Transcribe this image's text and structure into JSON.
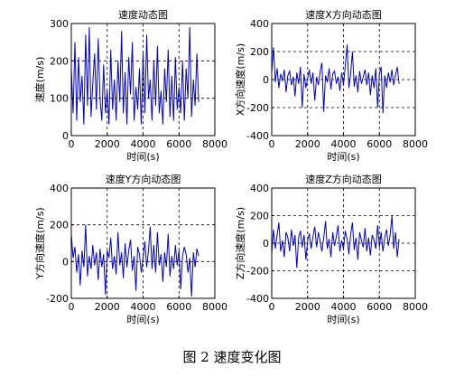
{
  "figure_caption": "图 2  速度变化图",
  "chart_data": [
    {
      "type": "line",
      "title": "速度动态图",
      "xlabel": "时间(s)",
      "ylabel": "速度(m/s)",
      "xlim": [
        0,
        8000
      ],
      "ylim": [
        0,
        300
      ],
      "xticks": [
        0,
        2000,
        4000,
        6000,
        8000
      ],
      "yticks": [
        0,
        100,
        200,
        300
      ],
      "grid": true,
      "line_color": "#0000cc",
      "series": [
        {
          "x": [
            0,
            100,
            200,
            300,
            400,
            500,
            600,
            700,
            800,
            900,
            1000,
            1100,
            1200,
            1300,
            1400,
            1500,
            1600,
            1700,
            1800,
            1900,
            2000,
            2100,
            2200,
            2300,
            2400,
            2500,
            2600,
            2700,
            2800,
            2900,
            3000,
            3100,
            3200,
            3300,
            3400,
            3500,
            3600,
            3700,
            3800,
            3900,
            4000,
            4100,
            4200,
            4300,
            4400,
            4500,
            4600,
            4700,
            4800,
            4900,
            5000,
            5100,
            5200,
            5300,
            5400,
            5500,
            5600,
            5700,
            5800,
            5900,
            6000,
            6100,
            6200,
            6300,
            6400,
            6500,
            6600,
            6700,
            6800,
            6900,
            7000,
            7100
          ],
          "y": [
            180,
            60,
            250,
            40,
            210,
            90,
            160,
            30,
            270,
            80,
            290,
            50,
            140,
            220,
            70,
            260,
            100,
            40,
            190,
            60,
            120,
            30,
            230,
            70,
            150,
            40,
            200,
            90,
            280,
            60,
            170,
            30,
            210,
            110,
            250,
            40,
            130,
            70,
            180,
            30,
            220,
            60,
            270,
            100,
            150,
            40,
            200,
            80,
            240,
            60,
            120,
            30,
            180,
            90,
            230,
            50,
            160,
            40,
            210,
            70,
            130,
            60,
            200,
            40,
            180,
            100,
            290,
            50,
            150,
            80,
            220,
            90
          ]
        }
      ]
    },
    {
      "type": "line",
      "title": "速度X方向动态图",
      "xlabel": "时间(s)",
      "ylabel": "X方向速度(m/s)",
      "xlim": [
        0,
        8000
      ],
      "ylim": [
        -400,
        400
      ],
      "xticks": [
        0,
        2000,
        4000,
        6000,
        8000
      ],
      "yticks": [
        -400,
        -200,
        0,
        200,
        400
      ],
      "grid": true,
      "line_color": "#0000cc",
      "series": [
        {
          "x": [
            0,
            100,
            200,
            300,
            400,
            500,
            600,
            700,
            800,
            900,
            1000,
            1100,
            1200,
            1300,
            1400,
            1500,
            1600,
            1700,
            1800,
            1900,
            2000,
            2100,
            2200,
            2300,
            2400,
            2500,
            2600,
            2700,
            2800,
            2900,
            3000,
            3100,
            3200,
            3300,
            3400,
            3500,
            3600,
            3700,
            3800,
            3900,
            4000,
            4100,
            4200,
            4300,
            4400,
            4500,
            4600,
            4700,
            4800,
            4900,
            5000,
            5100,
            5200,
            5300,
            5400,
            5500,
            5600,
            5700,
            5800,
            5900,
            6000,
            6100,
            6200,
            6300,
            6400,
            6500,
            6600,
            6700,
            6800,
            6900,
            7000,
            7100
          ],
          "y": [
            50,
            230,
            -20,
            80,
            -60,
            40,
            -10,
            70,
            -90,
            30,
            60,
            -40,
            20,
            -120,
            50,
            -30,
            90,
            -200,
            40,
            -60,
            10,
            70,
            -30,
            50,
            -150,
            20,
            -40,
            60,
            120,
            -230,
            30,
            -20,
            80,
            -70,
            40,
            60,
            -30,
            20,
            -80,
            50,
            -40,
            100,
            250,
            -60,
            40,
            200,
            -50,
            30,
            -90,
            60,
            -30,
            20,
            70,
            -40,
            50,
            -110,
            30,
            -60,
            80,
            -200,
            40,
            90,
            -240,
            30,
            -60,
            50,
            -20,
            70,
            -40,
            30,
            90,
            -30
          ]
        }
      ]
    },
    {
      "type": "line",
      "title": "速度Y方向动态图",
      "xlabel": "时间(s)",
      "ylabel": "Y方向速度(m/s)",
      "xlim": [
        0,
        8000
      ],
      "ylim": [
        -200,
        400
      ],
      "xticks": [
        0,
        2000,
        4000,
        6000,
        8000
      ],
      "yticks": [
        -200,
        0,
        200,
        400
      ],
      "grid": true,
      "line_color": "#0000cc",
      "series": [
        {
          "x": [
            0,
            100,
            200,
            300,
            400,
            500,
            600,
            700,
            800,
            900,
            1000,
            1100,
            1200,
            1300,
            1400,
            1500,
            1600,
            1700,
            1800,
            1900,
            2000,
            2100,
            2200,
            2300,
            2400,
            2500,
            2600,
            2700,
            2800,
            2900,
            3000,
            3100,
            3200,
            3300,
            3400,
            3500,
            3600,
            3700,
            3800,
            3900,
            4000,
            4100,
            4200,
            4300,
            4400,
            4500,
            4600,
            4700,
            4800,
            4900,
            5000,
            5100,
            5200,
            5300,
            5400,
            5500,
            5600,
            5700,
            5800,
            5900,
            6000,
            6100,
            6200,
            6300,
            6400,
            6500,
            6600,
            6700,
            6800,
            6900,
            7000,
            7100
          ],
          "y": [
            150,
            20,
            80,
            -60,
            40,
            -130,
            60,
            -30,
            200,
            -80,
            30,
            -40,
            90,
            -20,
            50,
            -100,
            70,
            -30,
            40,
            -180,
            60,
            20,
            130,
            -40,
            30,
            -70,
            160,
            -20,
            50,
            -90,
            100,
            -30,
            60,
            120,
            -50,
            30,
            -160,
            80,
            40,
            -60,
            20,
            110,
            -30,
            60,
            190,
            -40,
            90,
            -60,
            160,
            -20,
            40,
            -110,
            50,
            -30,
            150,
            -80,
            30,
            -40,
            90,
            -20,
            60,
            -150,
            30,
            80,
            40,
            -60,
            20,
            -190,
            50,
            -30,
            70,
            30
          ]
        }
      ]
    },
    {
      "type": "line",
      "title": "速度Z方向动态图",
      "xlabel": "时间(s)",
      "ylabel": "Z方向速度(m/s)",
      "xlim": [
        0,
        8000
      ],
      "ylim": [
        -400,
        400
      ],
      "xticks": [
        0,
        2000,
        4000,
        6000,
        8000
      ],
      "yticks": [
        -400,
        -200,
        0,
        200,
        400
      ],
      "grid": true,
      "line_color": "#0000cc",
      "series": [
        {
          "x": [
            0,
            100,
            200,
            300,
            400,
            500,
            600,
            700,
            800,
            900,
            1000,
            1100,
            1200,
            1300,
            1400,
            1500,
            1600,
            1700,
            1800,
            1900,
            2000,
            2100,
            2200,
            2300,
            2400,
            2500,
            2600,
            2700,
            2800,
            2900,
            3000,
            3100,
            3200,
            3300,
            3400,
            3500,
            3600,
            3700,
            3800,
            3900,
            4000,
            4100,
            4200,
            4300,
            4400,
            4500,
            4600,
            4700,
            4800,
            4900,
            5000,
            5100,
            5200,
            5300,
            5400,
            5500,
            5600,
            5700,
            5800,
            5900,
            6000,
            6100,
            6200,
            6300,
            6400,
            6500,
            6600,
            6700,
            6800,
            6900,
            7000,
            7100
          ],
          "y": [
            -80,
            100,
            -40,
            60,
            150,
            -60,
            20,
            -100,
            80,
            40,
            -60,
            100,
            -20,
            60,
            -180,
            40,
            90,
            -30,
            60,
            -120,
            20,
            70,
            -40,
            50,
            120,
            -30,
            80,
            10,
            -60,
            40,
            160,
            -40,
            30,
            -100,
            80,
            -20,
            50,
            130,
            -60,
            20,
            -40,
            90,
            30,
            -80,
            60,
            150,
            -50,
            40,
            -120,
            80,
            20,
            -30,
            110,
            -60,
            40,
            -90,
            60,
            20,
            -40,
            130,
            -30,
            80,
            -60,
            40,
            100,
            -20,
            60,
            200,
            -40,
            80,
            -100,
            30
          ]
        }
      ]
    }
  ]
}
